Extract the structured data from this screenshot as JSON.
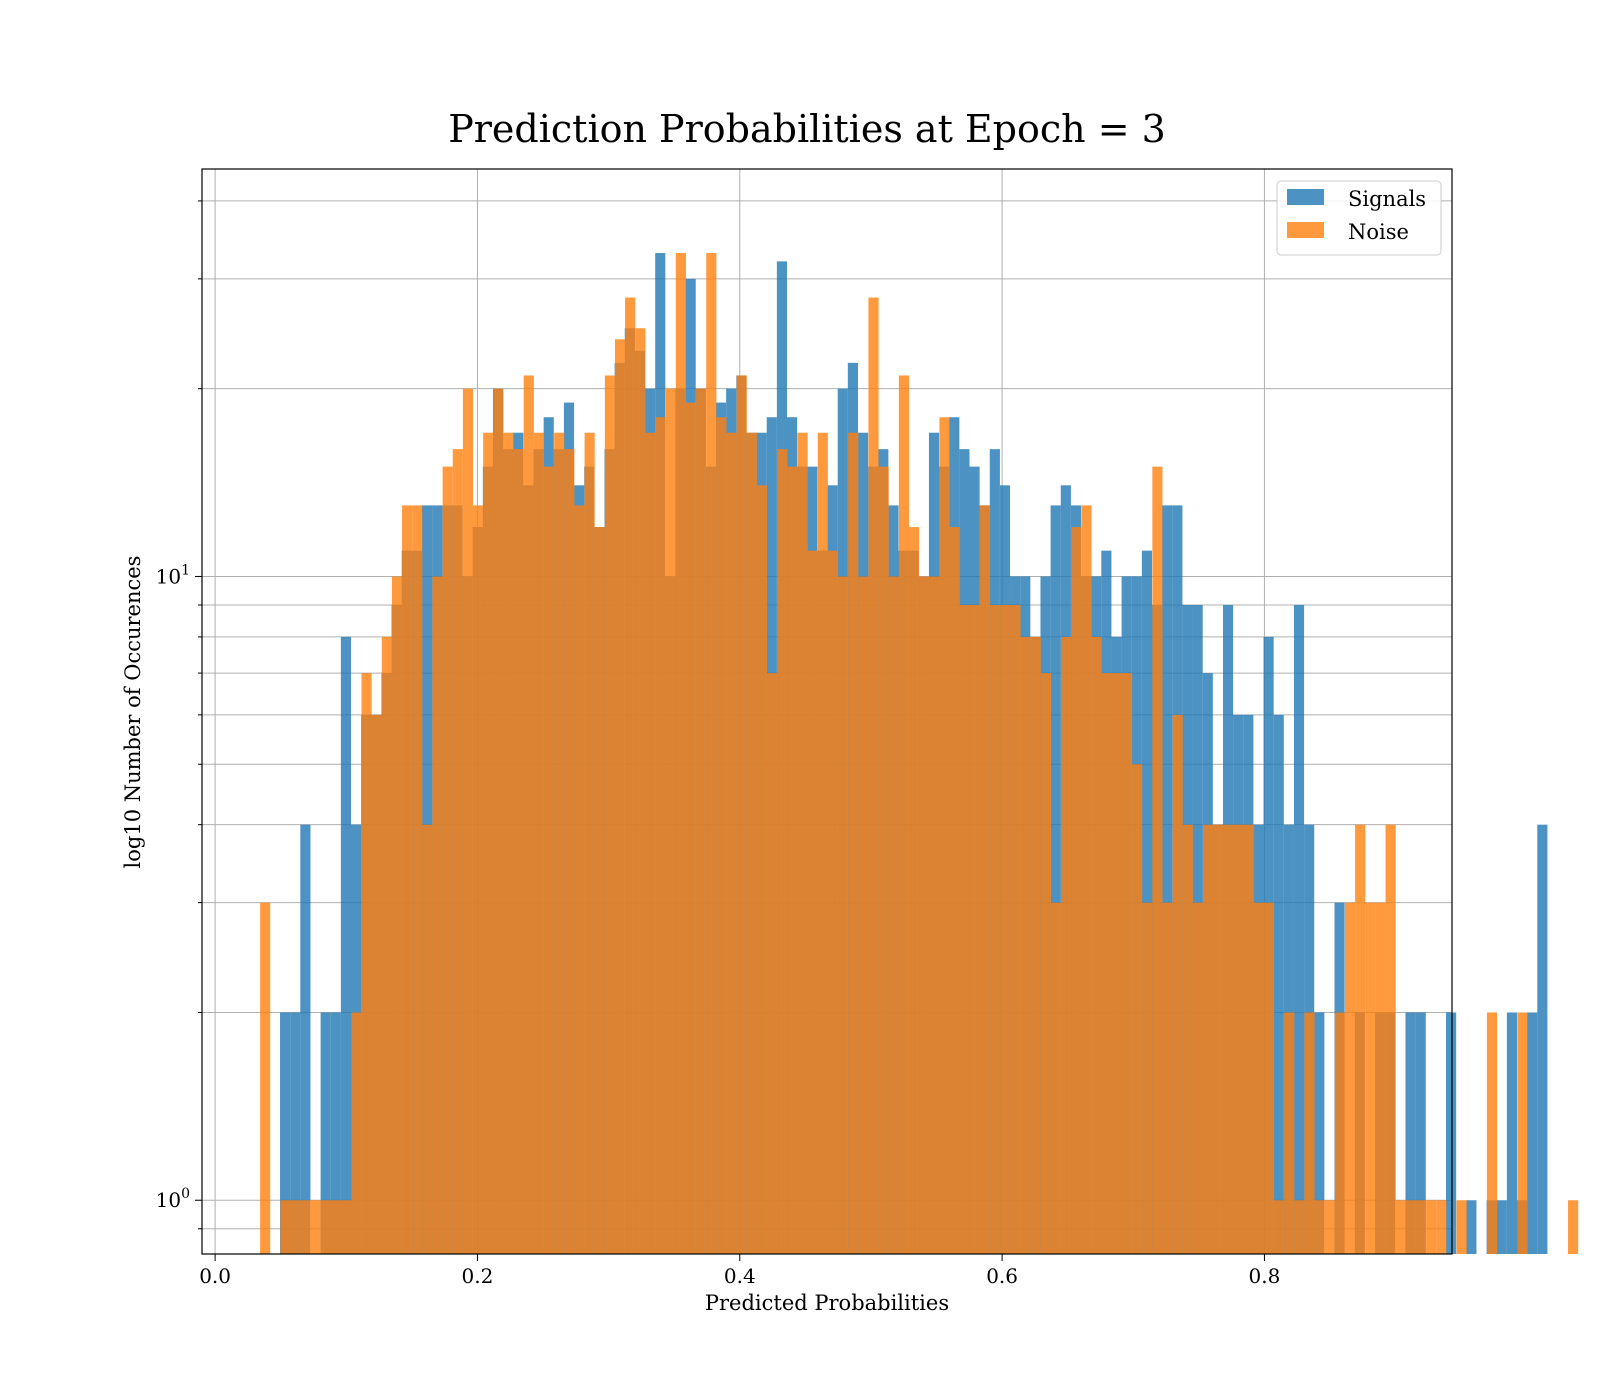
{
  "chart_data": {
    "type": "bar",
    "title": "Prediction Probabilities at Epoch = 3",
    "xlabel": "Predicted Probabilities",
    "ylabel": "log10 Number of Occurences",
    "xscale": "linear",
    "yscale": "log",
    "xlim": [
      -0.01,
      0.943
    ],
    "ylim": [
      0.82,
      45
    ],
    "xticks": [
      0.0,
      0.2,
      0.4,
      0.6,
      0.8
    ],
    "xtick_labels": [
      "0.0",
      "0.2",
      "0.4",
      "0.6",
      "0.8"
    ],
    "yticks": [
      1,
      10
    ],
    "ytick_labels": [
      "10^0",
      "10^1"
    ],
    "grid": true,
    "legend_position": "top-right",
    "series": [
      {
        "name": "Signals",
        "color": "#1f77b4",
        "opacity": 0.8,
        "bin_start": 0.0495,
        "bin_width": 0.00773,
        "values": [
          2,
          2,
          4,
          0,
          2,
          2,
          8,
          4,
          6,
          6,
          7,
          9,
          11,
          11,
          13,
          13,
          13,
          13,
          10,
          12,
          15,
          20,
          16,
          17,
          14,
          16,
          18,
          16,
          19,
          14,
          15,
          12,
          16,
          22,
          25,
          23,
          20,
          33,
          10,
          20,
          30,
          20,
          15,
          19,
          20,
          21,
          17,
          17,
          18,
          32,
          18,
          15,
          15,
          11,
          14,
          20,
          22,
          17,
          15,
          16,
          13,
          11,
          11,
          10,
          17,
          15,
          18,
          16,
          15,
          13,
          16,
          14,
          10,
          10,
          8,
          10,
          13,
          14,
          13,
          10,
          10,
          11,
          8,
          10,
          10,
          11,
          9,
          13,
          13,
          9,
          9,
          7,
          4,
          9,
          6,
          6,
          4,
          8,
          6,
          4,
          9,
          4,
          2,
          0,
          3,
          0,
          2,
          0,
          2,
          2,
          0,
          2,
          2,
          0,
          0,
          2,
          0,
          1,
          0,
          1,
          1,
          2,
          1,
          2,
          4
        ]
      },
      {
        "name": "Noise",
        "color": "#ff7f0e",
        "opacity": 0.8,
        "bin_start": 0.0343,
        "bin_width": 0.00773,
        "values": [
          3,
          0,
          1,
          1,
          1,
          1,
          1,
          1,
          1,
          2,
          7,
          6,
          8,
          10,
          13,
          13,
          4,
          10,
          15,
          16,
          20,
          13,
          17,
          20,
          17,
          16,
          21,
          17,
          15,
          17,
          16,
          13,
          17,
          12,
          21,
          24,
          28,
          25,
          17,
          18,
          20,
          33,
          19,
          20,
          33,
          18,
          17,
          21,
          17,
          14,
          7,
          16,
          15,
          17,
          11,
          17,
          11,
          10,
          17,
          10,
          28,
          15,
          10,
          21,
          12,
          10,
          10,
          18,
          12,
          9,
          9,
          13,
          9,
          9,
          9,
          8,
          8,
          7,
          3,
          8,
          12,
          13,
          8,
          7,
          7,
          7,
          5,
          3,
          15,
          3,
          6,
          4,
          3,
          4,
          4,
          4,
          4,
          4,
          3,
          3,
          1,
          2,
          1,
          2,
          1,
          1,
          2,
          3,
          4,
          3,
          3,
          4,
          1,
          1,
          1,
          1,
          1,
          0,
          1,
          0,
          0,
          2,
          0,
          0,
          2,
          0,
          0,
          0,
          0,
          1
        ]
      }
    ]
  }
}
